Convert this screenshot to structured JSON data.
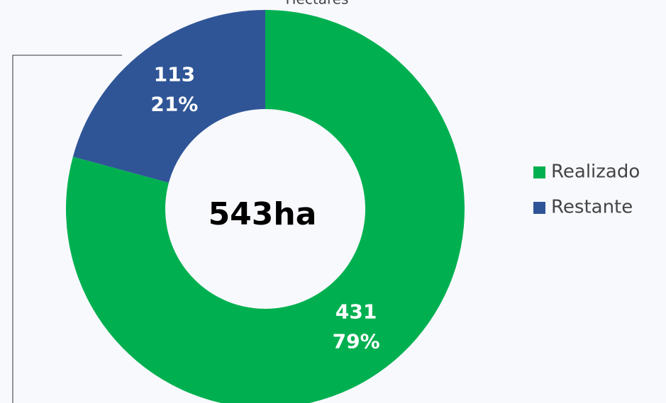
{
  "chart_data": {
    "type": "donut",
    "title": "Hectares",
    "center_label": "543ha",
    "categories": [
      "Realizado",
      "Restante"
    ],
    "values": [
      431,
      113
    ],
    "percentages": [
      79,
      21
    ],
    "percentage_labels": [
      "79%",
      "21%"
    ],
    "colors": [
      "#00b050",
      "#2f5597"
    ],
    "legend": "right"
  }
}
